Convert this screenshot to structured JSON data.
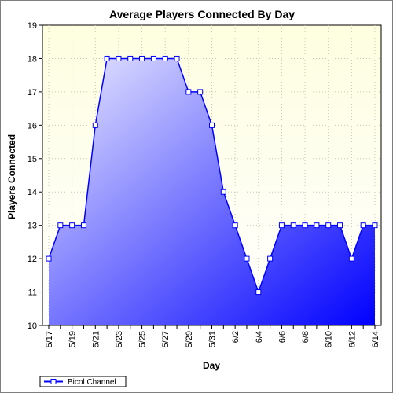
{
  "chart_data": {
    "type": "area",
    "title": "Average Players Connected By Day",
    "xlabel": "Day",
    "ylabel": "Players Connected",
    "ylim": [
      10,
      19
    ],
    "yticks": [
      10,
      11,
      12,
      13,
      14,
      15,
      16,
      17,
      18,
      19
    ],
    "x": [
      "5/17",
      "5/18",
      "5/19",
      "5/20",
      "5/21",
      "5/22",
      "5/23",
      "5/24",
      "5/25",
      "5/26",
      "5/27",
      "5/28",
      "5/29",
      "5/30",
      "5/31",
      "6/1",
      "6/2",
      "6/3",
      "6/4",
      "6/5",
      "6/6",
      "6/7",
      "6/8",
      "6/9",
      "6/10",
      "6/11",
      "6/12",
      "6/13",
      "6/14"
    ],
    "xtick_labels": [
      "5/17",
      "5/19",
      "5/21",
      "5/23",
      "5/25",
      "5/27",
      "5/29",
      "5/31",
      "6/2",
      "6/4",
      "6/6",
      "6/8",
      "6/10",
      "6/12",
      "6/14"
    ],
    "series": [
      {
        "name": "Bicol Channel",
        "values": [
          12,
          13,
          13,
          13,
          16,
          18,
          18,
          18,
          18,
          18,
          18,
          18,
          17,
          17,
          16,
          14,
          13,
          12,
          11,
          12,
          13,
          13,
          13,
          13,
          13,
          13,
          12,
          13,
          13
        ]
      }
    ],
    "grid": true,
    "legend_position": "bottom-left",
    "colors": {
      "plot_background_top": "#fefee0",
      "line": "#0000ff",
      "fill_top": "#e8e8ff",
      "fill_bottom": "#0000ff",
      "grid": "#c8c8a8"
    }
  }
}
